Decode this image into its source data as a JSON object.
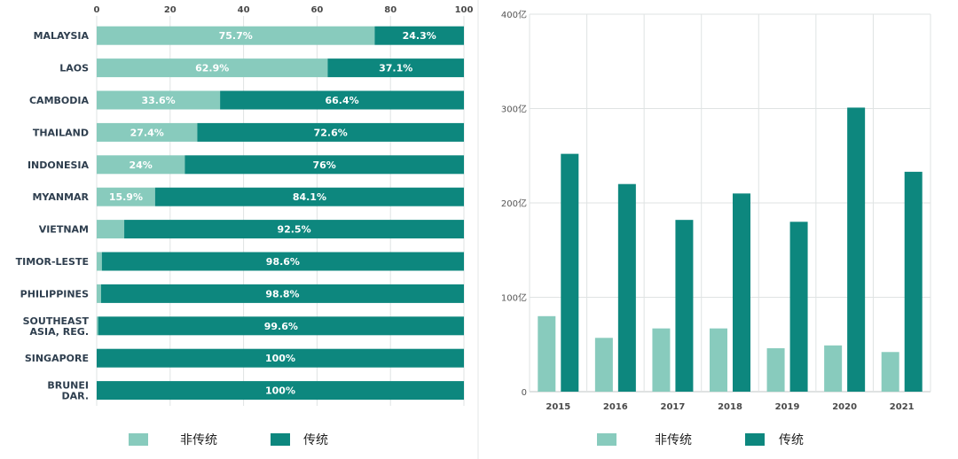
{
  "colors": {
    "non_traditional": "#88cbbd",
    "traditional": "#0d877e",
    "grid": "#dfe3e3",
    "axis": "#bfc5c5"
  },
  "chart_data": [
    {
      "type": "bar",
      "orientation": "horizontal",
      "stacked": true,
      "title": "",
      "xlabel": "",
      "ylabel": "",
      "xlim": [
        0,
        100
      ],
      "x_ticks": [
        "0",
        "20",
        "40",
        "60",
        "80",
        "100"
      ],
      "categories": [
        "MALAYSIA",
        "LAOS",
        "CAMBODIA",
        "THAILAND",
        "INDONESIA",
        "MYANMAR",
        "VIETNAM",
        "TIMOR-LESTE",
        "PHILIPPINES",
        "SOUTHEAST ASIA, REG.",
        "SINGAPORE",
        "BRUNEI DAR."
      ],
      "category_lines": [
        [
          "MALAYSIA"
        ],
        [
          "LAOS"
        ],
        [
          "CAMBODIA"
        ],
        [
          "THAILAND"
        ],
        [
          "INDONESIA"
        ],
        [
          "MYANMAR"
        ],
        [
          "VIETNAM"
        ],
        [
          "TIMOR-LESTE"
        ],
        [
          "PHILIPPINES"
        ],
        [
          "SOUTHEAST",
          "ASIA, REG."
        ],
        [
          "SINGAPORE"
        ],
        [
          "BRUNEI",
          "DAR."
        ]
      ],
      "series": [
        {
          "name": "非传统",
          "values": [
            75.7,
            62.9,
            33.6,
            27.4,
            24,
            15.9,
            7.5,
            1.4,
            1.2,
            0.4,
            0,
            0
          ],
          "labels": [
            "75.7%",
            "62.9%",
            "33.6%",
            "27.4%",
            "24%",
            "15.9%",
            "",
            "",
            "",
            "",
            "",
            ""
          ]
        },
        {
          "name": "传统",
          "values": [
            24.3,
            37.1,
            66.4,
            72.6,
            76,
            84.1,
            92.5,
            98.6,
            98.8,
            99.6,
            100,
            100
          ],
          "labels": [
            "24.3%",
            "37.1%",
            "66.4%",
            "72.6%",
            "76%",
            "84.1%",
            "92.5%",
            "98.6%",
            "98.8%",
            "99.6%",
            "100%",
            "100%"
          ]
        }
      ],
      "legend": {
        "position": "bottom",
        "entries": [
          "非传统",
          "传统"
        ]
      },
      "grid": true
    },
    {
      "type": "bar",
      "orientation": "vertical",
      "stacked": false,
      "title": "",
      "xlabel": "",
      "ylabel": "",
      "ylim": [
        0,
        400
      ],
      "y_ticks": [
        "0",
        "100亿",
        "200亿",
        "300亿",
        "400亿"
      ],
      "categories": [
        "2015",
        "2016",
        "2017",
        "2018",
        "2019",
        "2020",
        "2021"
      ],
      "series": [
        {
          "name": "非传统",
          "values": [
            80,
            57,
            67,
            67,
            46,
            49,
            42
          ]
        },
        {
          "name": "传统",
          "values": [
            252,
            220,
            182,
            210,
            180,
            301,
            233
          ]
        }
      ],
      "legend": {
        "position": "bottom",
        "entries": [
          "非传统",
          "传统"
        ]
      },
      "grid": true
    }
  ]
}
